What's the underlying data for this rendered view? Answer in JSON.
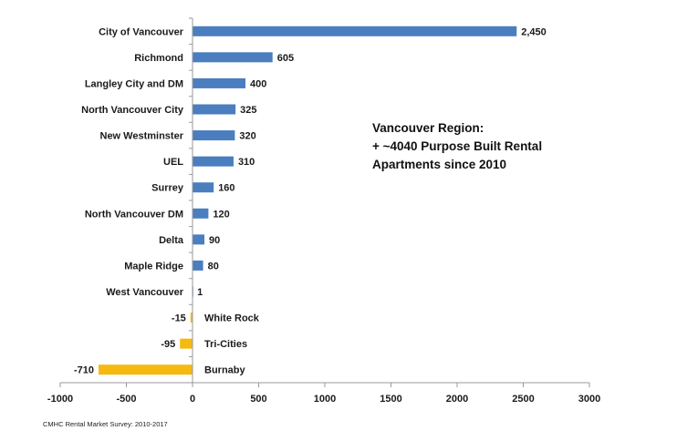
{
  "chart_data": {
    "type": "bar",
    "orientation": "horizontal",
    "categories": [
      "City of Vancouver",
      "Richmond",
      "Langley City and DM",
      "North Vancouver City",
      "New Westminster",
      "UEL",
      "Surrey",
      "North Vancouver DM",
      "Delta",
      "Maple Ridge",
      "West Vancouver",
      "White Rock",
      "Tri-Cities",
      "Burnaby"
    ],
    "values": [
      2450,
      605,
      400,
      325,
      320,
      310,
      160,
      120,
      90,
      80,
      1,
      -15,
      -95,
      -710
    ],
    "value_labels": [
      "2,450",
      "605",
      "400",
      "325",
      "320",
      "310",
      "160",
      "120",
      "90",
      "80",
      "1",
      "-15",
      "-95",
      "-710"
    ],
    "xlim": [
      -1000,
      3000
    ],
    "x_ticks": [
      "-1000",
      "-500",
      "0",
      "500",
      "1000",
      "1500",
      "2000",
      "2500",
      "3000"
    ],
    "colors": {
      "positive": "#4a7ebf",
      "negative": "#f5b90f"
    },
    "grid": false,
    "annotation": [
      "Vancouver Region:",
      "+ ~4040 Purpose Built Rental",
      "Apartments since 2010"
    ],
    "source": "CMHC Rental Market Survey: 2010-2017"
  }
}
